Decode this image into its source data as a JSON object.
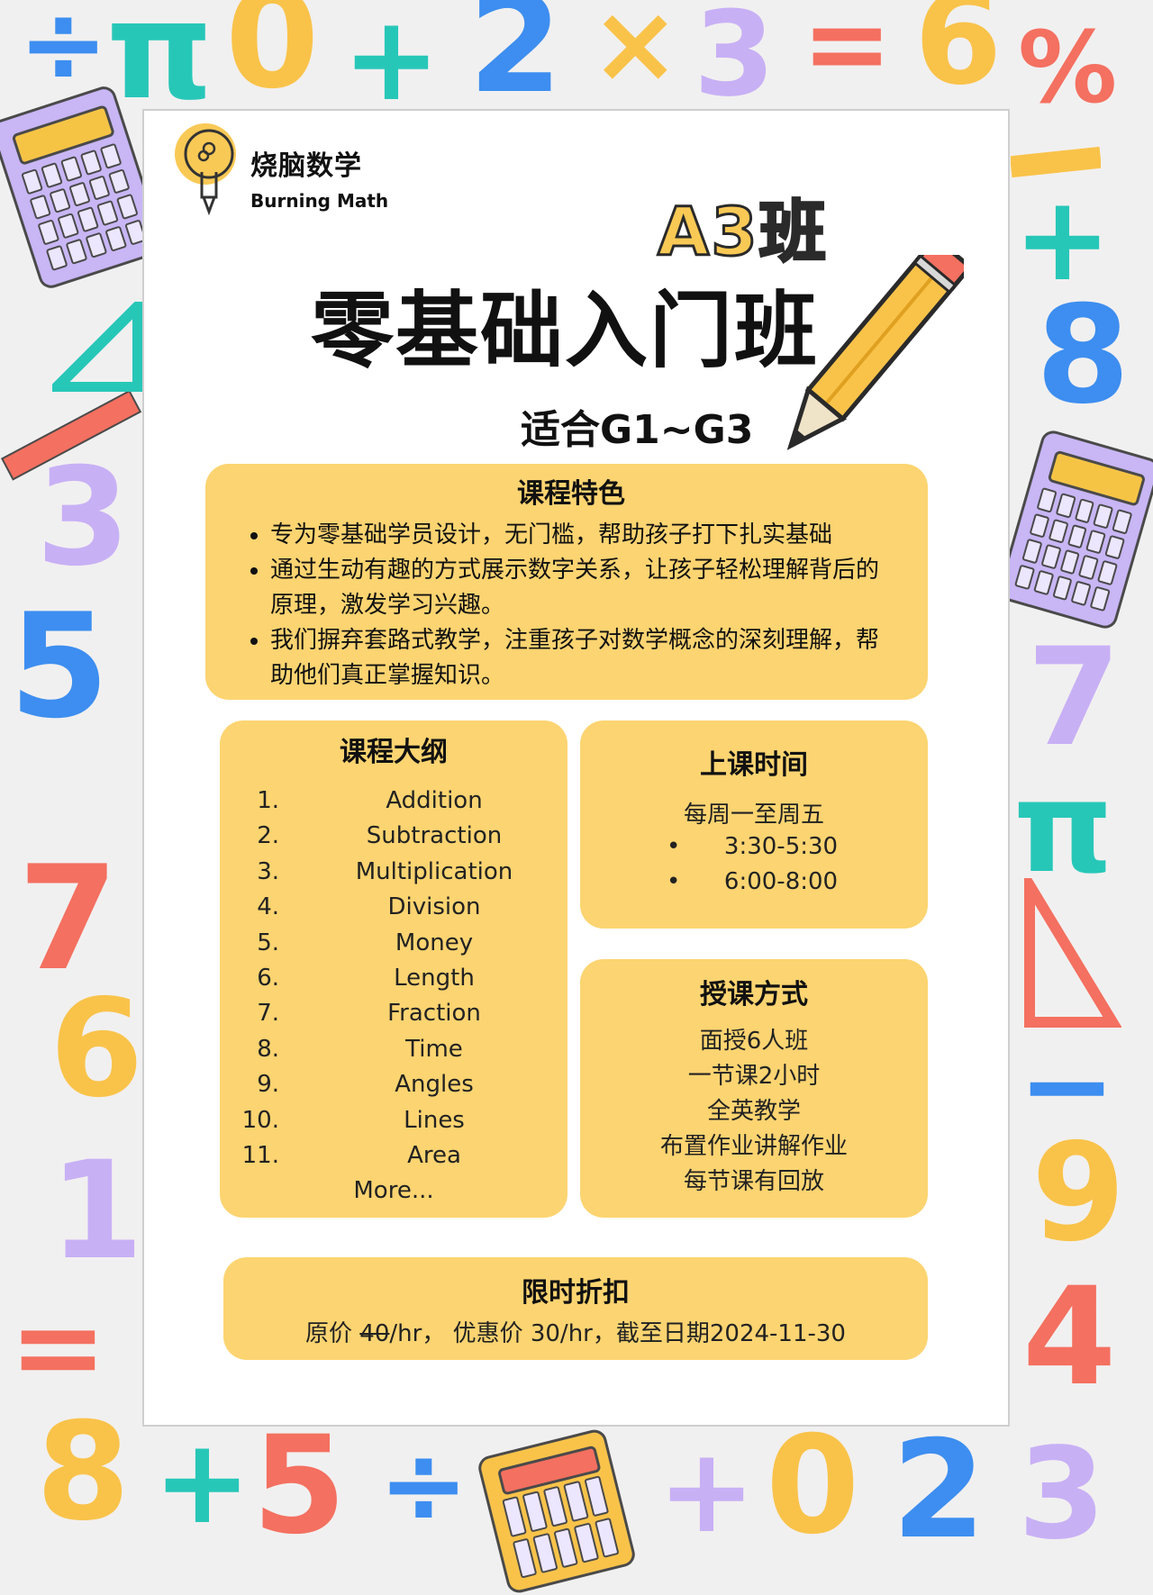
{
  "brand": {
    "name_cn": "烧脑数学",
    "name_en": "Burning Math"
  },
  "class_code": "A3班",
  "title": "零基础入门班",
  "grade_range": "适合G1~G3",
  "features": {
    "title": "课程特色",
    "items": [
      "专为零基础学员设计，无门槛，帮助孩子打下扎实基础",
      "通过生动有趣的方式展示数字关系，让孩子轻松理解背后的原理，激发学习兴趣。",
      "我们摒弃套路式教学，注重孩子对数学概念的深刻理解，帮助他们真正掌握知识。"
    ]
  },
  "outline": {
    "title": "课程大纲",
    "items": [
      {
        "num": "1.",
        "name": "Addition"
      },
      {
        "num": "2.",
        "name": "Subtraction"
      },
      {
        "num": "3.",
        "name": "Multiplication"
      },
      {
        "num": "4.",
        "name": "Division"
      },
      {
        "num": "5.",
        "name": "Money"
      },
      {
        "num": "6.",
        "name": "Length"
      },
      {
        "num": "7.",
        "name": "Fraction"
      },
      {
        "num": "8.",
        "name": "Time"
      },
      {
        "num": "9.",
        "name": "Angles"
      },
      {
        "num": "10.",
        "name": "Lines"
      },
      {
        "num": "11.",
        "name": "Area"
      }
    ],
    "more": "More..."
  },
  "schedule": {
    "title": "上课时间",
    "days": "每周一至周五",
    "bullet": "•",
    "times": [
      "3:30-5:30",
      "6:00-8:00"
    ]
  },
  "method": {
    "title": "授课方式",
    "items": [
      "面授6人班",
      "一节课2小时",
      "全英教学",
      "布置作业讲解作业",
      "每节课有回放"
    ]
  },
  "discount": {
    "title": "限时折扣",
    "original_label": "原价 ",
    "original_price": "40",
    "original_unit": "/hr， 优惠价 30/hr，截至日期2024-11-30"
  },
  "decor_symbols": [
    "÷",
    "π",
    "0",
    "+",
    "2",
    "×",
    "3",
    "=",
    "6",
    "%",
    "8",
    "3",
    "5",
    "7",
    "6",
    "1",
    "=",
    "8",
    "+",
    "5",
    "÷",
    "+",
    "0",
    "2",
    "3",
    "4",
    "9",
    "7",
    "π",
    "+",
    "−"
  ],
  "colors": {
    "card": "#fcd471",
    "background": "#f1f0f0",
    "accent_orange": "#f9c955"
  }
}
